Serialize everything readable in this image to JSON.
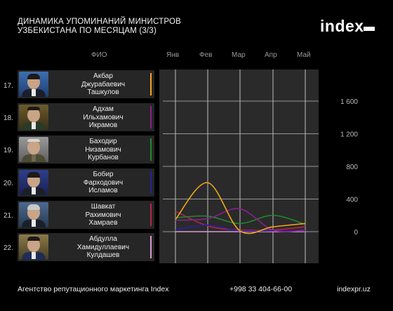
{
  "title": [
    "ДИНАМИКА УПОМИНАНИЙ МИНИСТРОВ",
    "УЗБЕКИСТАНА ПО МЕСЯЦАМ (3/3)"
  ],
  "logo": "index",
  "fio_header": "ФИО",
  "people": [
    {
      "num": "17.",
      "lines": [
        "Акбар",
        "Джурабаевич",
        "Ташкулов"
      ],
      "color": "#f2a51b"
    },
    {
      "num": "18.",
      "lines": [
        "Адхам",
        "Ильхамович",
        "Икрамов"
      ],
      "color": "#8b1e8e"
    },
    {
      "num": "19.",
      "lines": [
        "Баходир",
        "Низамович",
        "Курбанов"
      ],
      "color": "#1f8a2b"
    },
    {
      "num": "20.",
      "lines": [
        "Бобир",
        "Фарходович",
        "Исламов"
      ],
      "color": "#2a1f9e"
    },
    {
      "num": "21.",
      "lines": [
        "Шавкат",
        "Рахимович",
        "Хамраев"
      ],
      "color": "#b3264b"
    },
    {
      "num": "22.",
      "lines": [
        "Абдулла",
        "Хамидуллаевич",
        "Кулдашев"
      ],
      "color": "#d99ad6"
    }
  ],
  "chart_data": {
    "type": "line",
    "categories": [
      "Янв",
      "Фев",
      "Мар",
      "Апр",
      "Май"
    ],
    "yticks": [
      "0",
      "400",
      "800",
      "1 200",
      "1 600"
    ],
    "ylim": [
      0,
      1600
    ],
    "grid": true,
    "series": [
      {
        "name": "Акбар Джурабаевич Ташкулов",
        "color": "#f2a51b",
        "values": [
          150,
          600,
          10,
          60,
          100
        ]
      },
      {
        "name": "Адхам Ильхамович Икрамов",
        "color": "#8b1e8e",
        "values": [
          140,
          160,
          280,
          20,
          20
        ]
      },
      {
        "name": "Баходир Низамович Курбанов",
        "color": "#1f8a2b",
        "values": [
          170,
          190,
          100,
          200,
          90
        ]
      },
      {
        "name": "Бобир Фарходович Исламов",
        "color": "#2a1f9e",
        "values": [
          20,
          80,
          10,
          10,
          10
        ]
      },
      {
        "name": "Шавкат Рахимович Хамраев",
        "color": "#b3264b",
        "values": [
          250,
          70,
          20,
          20,
          60
        ]
      },
      {
        "name": "Абдулла Хамидуллаевич Кулдашев",
        "color": "#d99ad6",
        "values": [
          0,
          0,
          0,
          0,
          0
        ]
      }
    ]
  },
  "footer": {
    "agency": "Агентство репутационного маркетинга Index",
    "phone": "+998 33 404-66-00",
    "site": "indexpr.uz"
  }
}
